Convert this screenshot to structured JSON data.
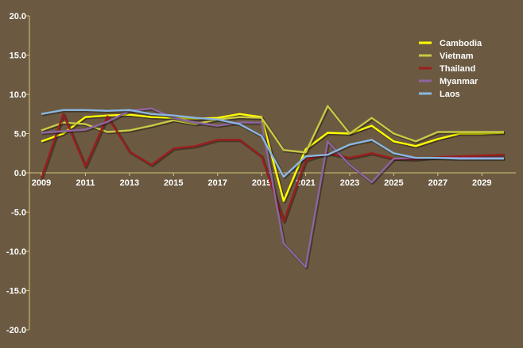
{
  "chart_data": {
    "type": "line",
    "x": [
      2009,
      2010,
      2011,
      2012,
      2013,
      2014,
      2015,
      2016,
      2017,
      2018,
      2019,
      2020,
      2021,
      2022,
      2023,
      2024,
      2025,
      2026,
      2027,
      2028,
      2029,
      2030
    ],
    "x_ticks": [
      2009,
      2011,
      2013,
      2015,
      2017,
      2019,
      2021,
      2023,
      2025,
      2027,
      2029
    ],
    "y_ticks": [
      20.0,
      15.0,
      10.0,
      5.0,
      0.0,
      -5.0,
      -10.0,
      -15.0,
      -20.0
    ],
    "y_tick_labels": [
      "20.0",
      "15.0",
      "10.0",
      "5.0",
      "0.0",
      "-5.0",
      "-10.0",
      "-15.0",
      "-20.0"
    ],
    "xlim": [
      2009,
      2030
    ],
    "ylim": [
      -20,
      20
    ],
    "title": "",
    "xlabel": "",
    "ylabel": "",
    "grid": false,
    "legend_position": "top-right",
    "series": [
      {
        "name": "Cambodia",
        "color": "#ffff00",
        "values": [
          4.0,
          5.0,
          7.1,
          7.3,
          7.4,
          7.1,
          7.0,
          6.9,
          7.0,
          7.5,
          7.1,
          -3.6,
          3.0,
          5.1,
          5.0,
          6.0,
          4.0,
          3.4,
          4.3,
          5.0,
          5.0,
          5.1
        ]
      },
      {
        "name": "Vietnam",
        "color": "#c8c847",
        "values": [
          5.4,
          6.4,
          6.2,
          5.2,
          5.4,
          6.0,
          6.7,
          6.2,
          6.8,
          7.1,
          7.0,
          2.9,
          2.6,
          8.5,
          5.0,
          7.0,
          5.0,
          4.0,
          5.2,
          5.2,
          5.2,
          5.2
        ]
      },
      {
        "name": "Thailand",
        "color": "#9c1d1d",
        "values": [
          -0.7,
          7.5,
          0.8,
          7.2,
          2.7,
          1.0,
          3.1,
          3.4,
          4.2,
          4.2,
          2.1,
          -6.2,
          1.6,
          2.5,
          1.9,
          2.5,
          1.8,
          1.7,
          2.0,
          2.1,
          2.2,
          2.3
        ]
      },
      {
        "name": "Myanmar",
        "color": "#8e65a0",
        "values": [
          5.1,
          5.3,
          5.5,
          6.5,
          7.9,
          8.2,
          7.0,
          6.4,
          6.0,
          6.4,
          6.4,
          -9.0,
          -12.0,
          4.0,
          1.0,
          -1.2,
          1.8,
          1.9,
          1.9,
          1.9,
          1.9,
          1.9
        ]
      },
      {
        "name": "Laos",
        "color": "#8ab6e0",
        "values": [
          7.5,
          8.0,
          8.0,
          7.9,
          8.0,
          7.5,
          7.3,
          7.0,
          6.8,
          6.2,
          4.7,
          -0.5,
          2.1,
          2.3,
          3.6,
          4.2,
          2.5,
          1.9,
          1.9,
          1.8,
          1.8,
          1.8
        ]
      }
    ],
    "colors": {
      "background": "#6b5a41",
      "axis": "#d9c27c",
      "text": "#ffffff"
    }
  }
}
